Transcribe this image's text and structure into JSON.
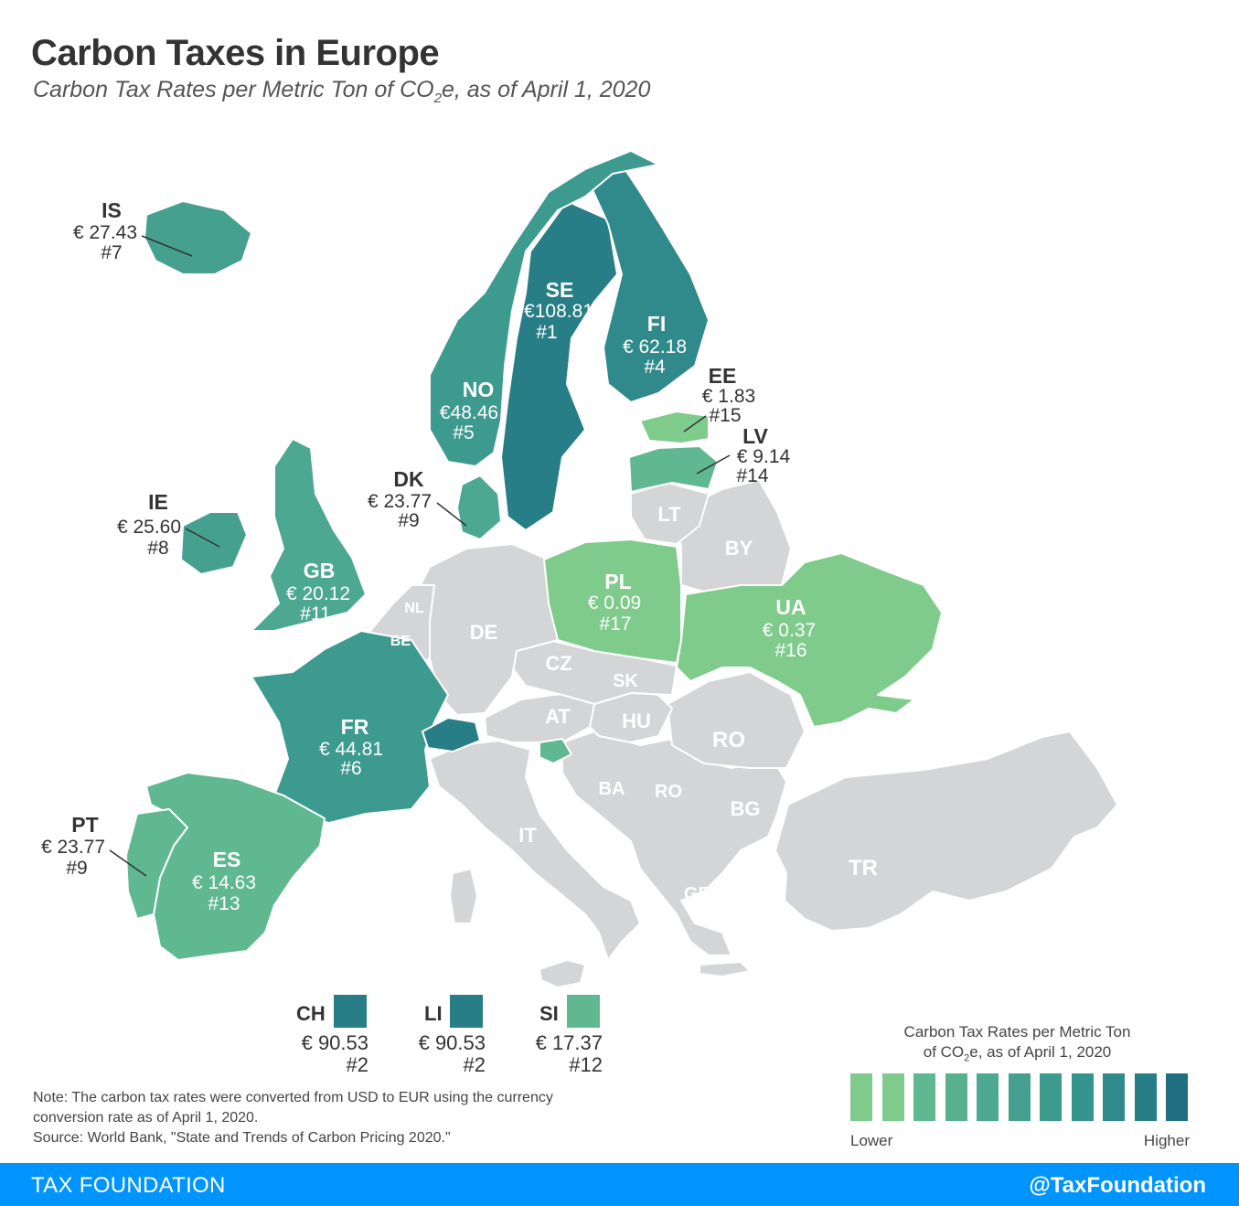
{
  "title": "Carbon Taxes in Europe",
  "subtitle": {
    "before": "Carbon Tax Rates per Metric Ton of CO",
    "sub": "2",
    "after": "e, as of April 1, 2020"
  },
  "colors": {
    "no_tax": "#d4d5d7",
    "scale": [
      "#7fcb8c",
      "#7fcb8c",
      "#5fb890",
      "#58b08f",
      "#4da892",
      "#45a090",
      "#3d9a8f",
      "#36948e",
      "#30898a",
      "#287e86",
      "#1f6f80"
    ],
    "footer": "#0094ff"
  },
  "countries": {
    "IS": {
      "code": "IS",
      "rate": "€ 27.43",
      "rank": "#7"
    },
    "SE": {
      "code": "SE",
      "rate": "€108.81",
      "rank": "#1"
    },
    "FI": {
      "code": "FI",
      "rate": "€ 62.18",
      "rank": "#4"
    },
    "NO": {
      "code": "NO",
      "rate": "€48.46",
      "rank": "#5"
    },
    "EE": {
      "code": "EE",
      "rate": "€ 1.83",
      "rank": "#15"
    },
    "LV": {
      "code": "LV",
      "rate": "€ 9.14",
      "rank": "#14"
    },
    "DK": {
      "code": "DK",
      "rate": "€ 23.77",
      "rank": "#9"
    },
    "IE": {
      "code": "IE",
      "rate": "€ 25.60",
      "rank": "#8"
    },
    "GB": {
      "code": "GB",
      "rate": "€ 20.12",
      "rank": "#11"
    },
    "PL": {
      "code": "PL",
      "rate": "€ 0.09",
      "rank": "#17"
    },
    "UA": {
      "code": "UA",
      "rate": "€ 0.37",
      "rank": "#16"
    },
    "FR": {
      "code": "FR",
      "rate": "€ 44.81",
      "rank": "#6"
    },
    "PT": {
      "code": "PT",
      "rate": "€ 23.77",
      "rank": "#9"
    },
    "ES": {
      "code": "ES",
      "rate": "€ 14.63",
      "rank": "#13"
    },
    "CH": {
      "code": "CH",
      "rate": "€ 90.53",
      "rank": "#2"
    },
    "LI": {
      "code": "LI",
      "rate": "€ 90.53",
      "rank": "#2"
    },
    "SI": {
      "code": "SI",
      "rate": "€ 17.37",
      "rank": "#12"
    }
  },
  "no_tax_labels": {
    "LT": "LT",
    "BY": "BY",
    "NL": "NL",
    "BE": "BE",
    "DE": "DE",
    "CZ": "CZ",
    "SK": "SK",
    "AT": "AT",
    "HU": "HU",
    "RO": "RO",
    "BA": "BA",
    "RO2": "RO",
    "BG": "BG",
    "IT": "IT",
    "GR": "GR",
    "TR": "TR"
  },
  "note": "Note: The carbon tax rates were converted from USD to EUR using the currency conversion rate as of April 1, 2020.",
  "source": "Source: World Bank, \"State and Trends of Carbon Pricing 2020.\"",
  "legend": {
    "title_line1": "Carbon Tax Rates per Metric Ton",
    "title_line2_before": "of CO",
    "title_line2_sub": "2",
    "title_line2_after": "e, as of April 1, 2020",
    "low": "Lower",
    "high": "Higher"
  },
  "footer": {
    "brand": "TAX FOUNDATION",
    "handle": "@TaxFoundation"
  }
}
